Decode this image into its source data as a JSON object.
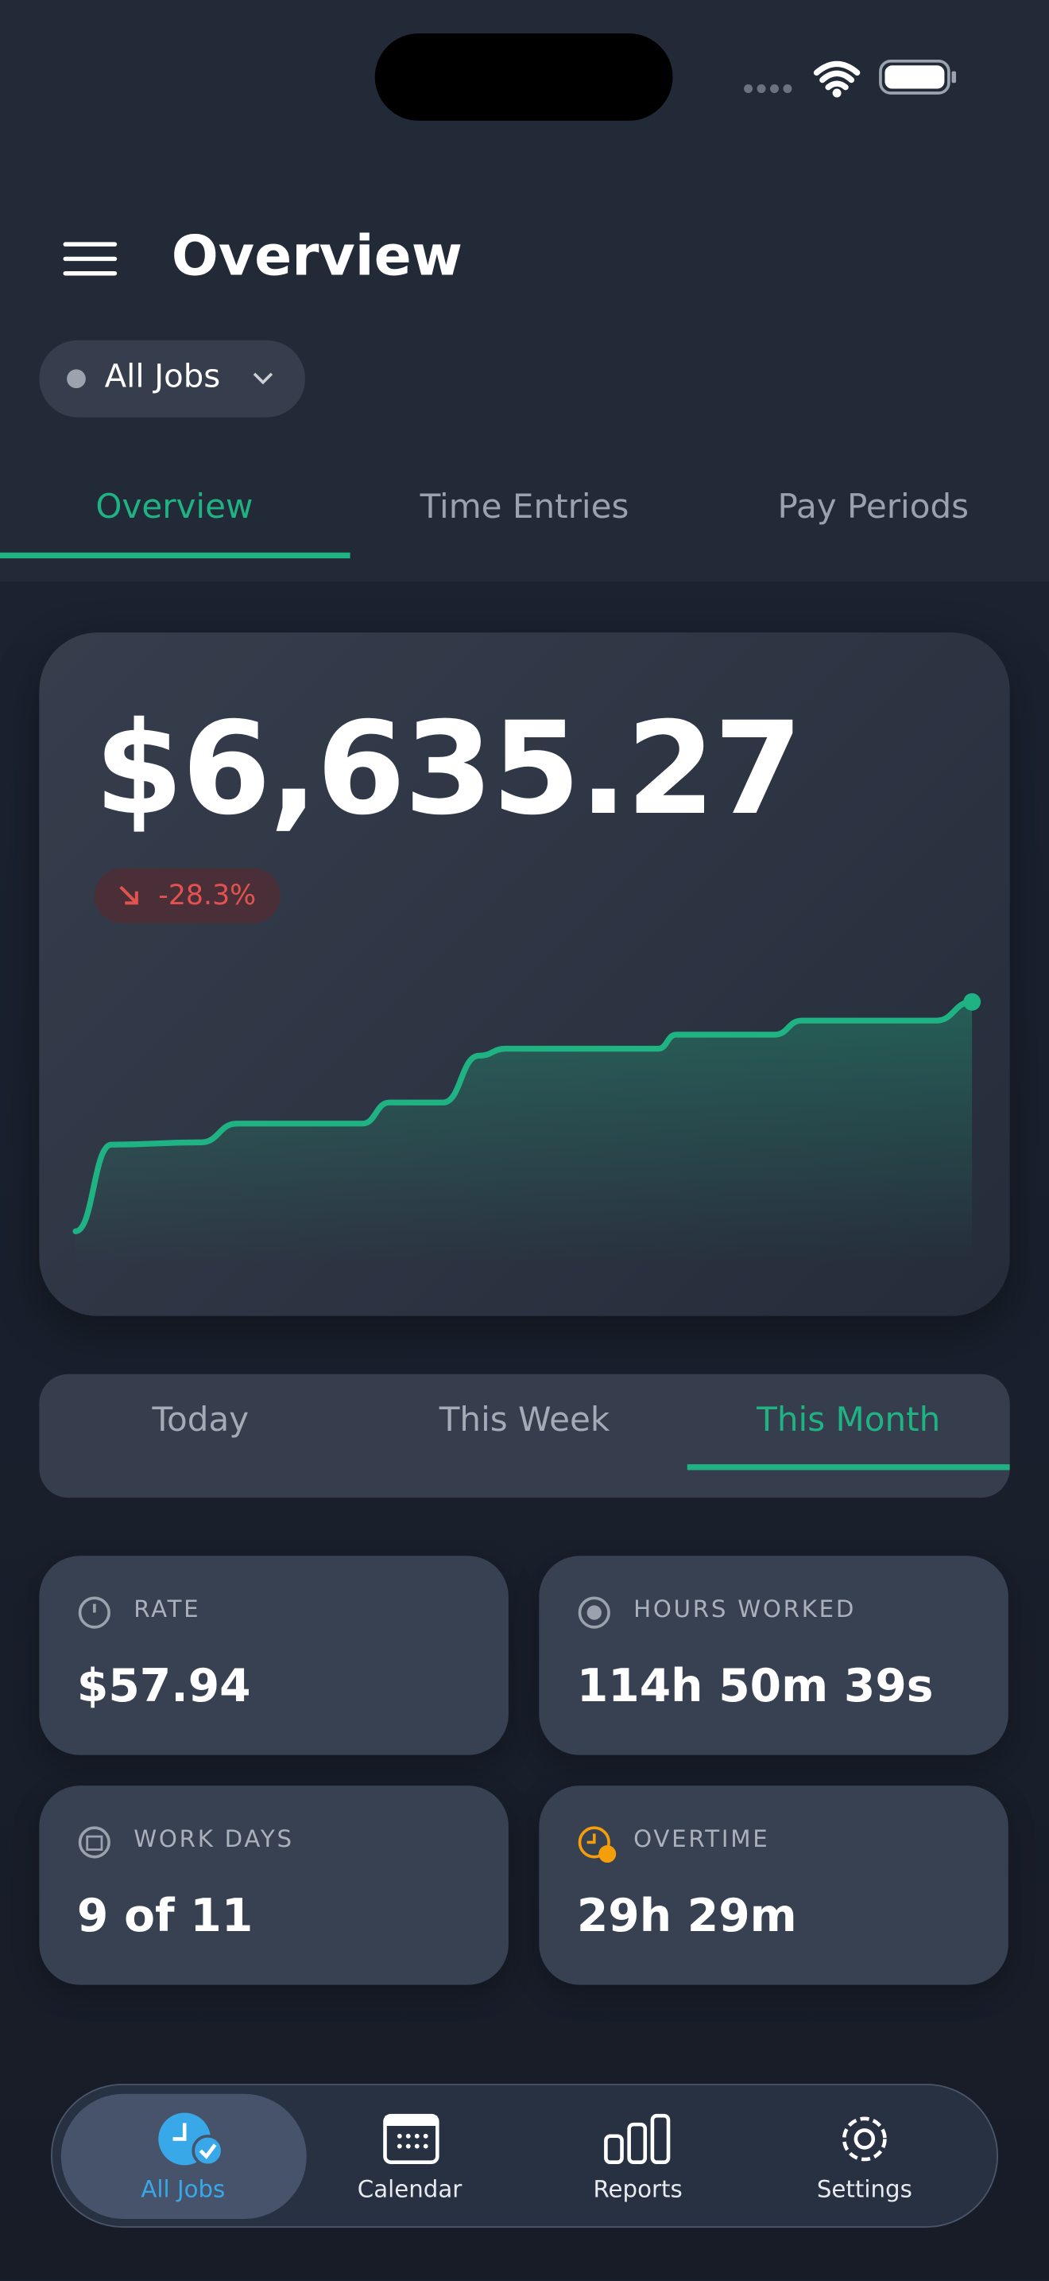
{
  "header": {
    "title": "Overview"
  },
  "job_filter": {
    "label": "All Jobs"
  },
  "tabs": {
    "items": [
      "Overview",
      "Time Entries",
      "Pay Periods"
    ],
    "active": 0
  },
  "summary": {
    "amount": "$6,635.27",
    "change": "-28.3%"
  },
  "chart_data": {
    "type": "line",
    "x": [
      0,
      4,
      14,
      18,
      32,
      35,
      41,
      45,
      48,
      65,
      67,
      78,
      81,
      96,
      100
    ],
    "values": [
      2,
      39,
      40,
      48,
      48,
      57,
      57,
      77,
      80,
      80,
      86,
      86,
      92,
      92,
      100
    ],
    "xlim": [
      0,
      100
    ],
    "ylim": [
      0,
      100
    ],
    "color": "#1fb383",
    "area": true
  },
  "periods": {
    "items": [
      "Today",
      "This Week",
      "This Month"
    ],
    "active": 2
  },
  "stats": [
    {
      "label": "RATE",
      "value": "$57.94"
    },
    {
      "label": "HOURS WORKED",
      "value": "114h 50m 39s"
    },
    {
      "label": "WORK DAYS",
      "value": "9 of 11"
    },
    {
      "label": "OVERTIME",
      "value": "29h 29m"
    }
  ],
  "nav": {
    "items": [
      "All Jobs",
      "Calendar",
      "Reports",
      "Settings"
    ],
    "active": 0
  }
}
